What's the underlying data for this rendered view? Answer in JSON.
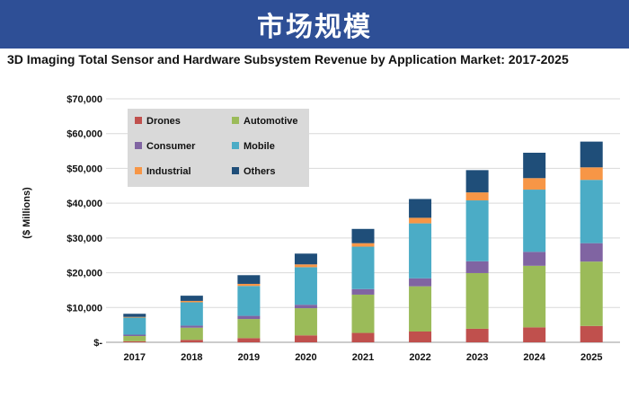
{
  "banner": {
    "title": "市场规模"
  },
  "chart_data": {
    "type": "bar",
    "stacked": true,
    "title": "3D Imaging Total Sensor and Hardware Subsystem Revenue by Application Market: 2017-2025",
    "xlabel": "",
    "ylabel": "($ Millions)",
    "ylim": [
      0,
      70000
    ],
    "yticks": [
      0,
      10000,
      20000,
      30000,
      40000,
      50000,
      60000,
      70000
    ],
    "ytick_labels": [
      "$-",
      "$10,000",
      "$20,000",
      "$30,000",
      "$40,000",
      "$50,000",
      "$60,000",
      "$70,000"
    ],
    "grid": true,
    "legend_position": "top-left",
    "categories": [
      "2017",
      "2018",
      "2019",
      "2020",
      "2021",
      "2022",
      "2023",
      "2024",
      "2025"
    ],
    "series": [
      {
        "name": "Drones",
        "color": "#c0504d",
        "values": [
          300,
          700,
          1200,
          2000,
          2700,
          3100,
          3900,
          4300,
          4700
        ]
      },
      {
        "name": "Automotive",
        "color": "#9bbb59",
        "values": [
          1500,
          3500,
          5500,
          7800,
          11000,
          13000,
          16000,
          17700,
          18500
        ]
      },
      {
        "name": "Consumer",
        "color": "#8064a2",
        "values": [
          400,
          600,
          900,
          1000,
          1600,
          2300,
          3400,
          4000,
          5300
        ]
      },
      {
        "name": "Mobile",
        "color": "#4bacc6",
        "values": [
          4900,
          6700,
          8600,
          10800,
          12200,
          15800,
          17500,
          17900,
          18200
        ]
      },
      {
        "name": "Industrial",
        "color": "#f79646",
        "values": [
          200,
          400,
          600,
          800,
          1000,
          1600,
          2300,
          3300,
          3600
        ]
      },
      {
        "name": "Others",
        "color": "#1f4e79",
        "values": [
          900,
          1500,
          2500,
          3100,
          4100,
          5400,
          6400,
          7300,
          7400
        ]
      }
    ]
  }
}
